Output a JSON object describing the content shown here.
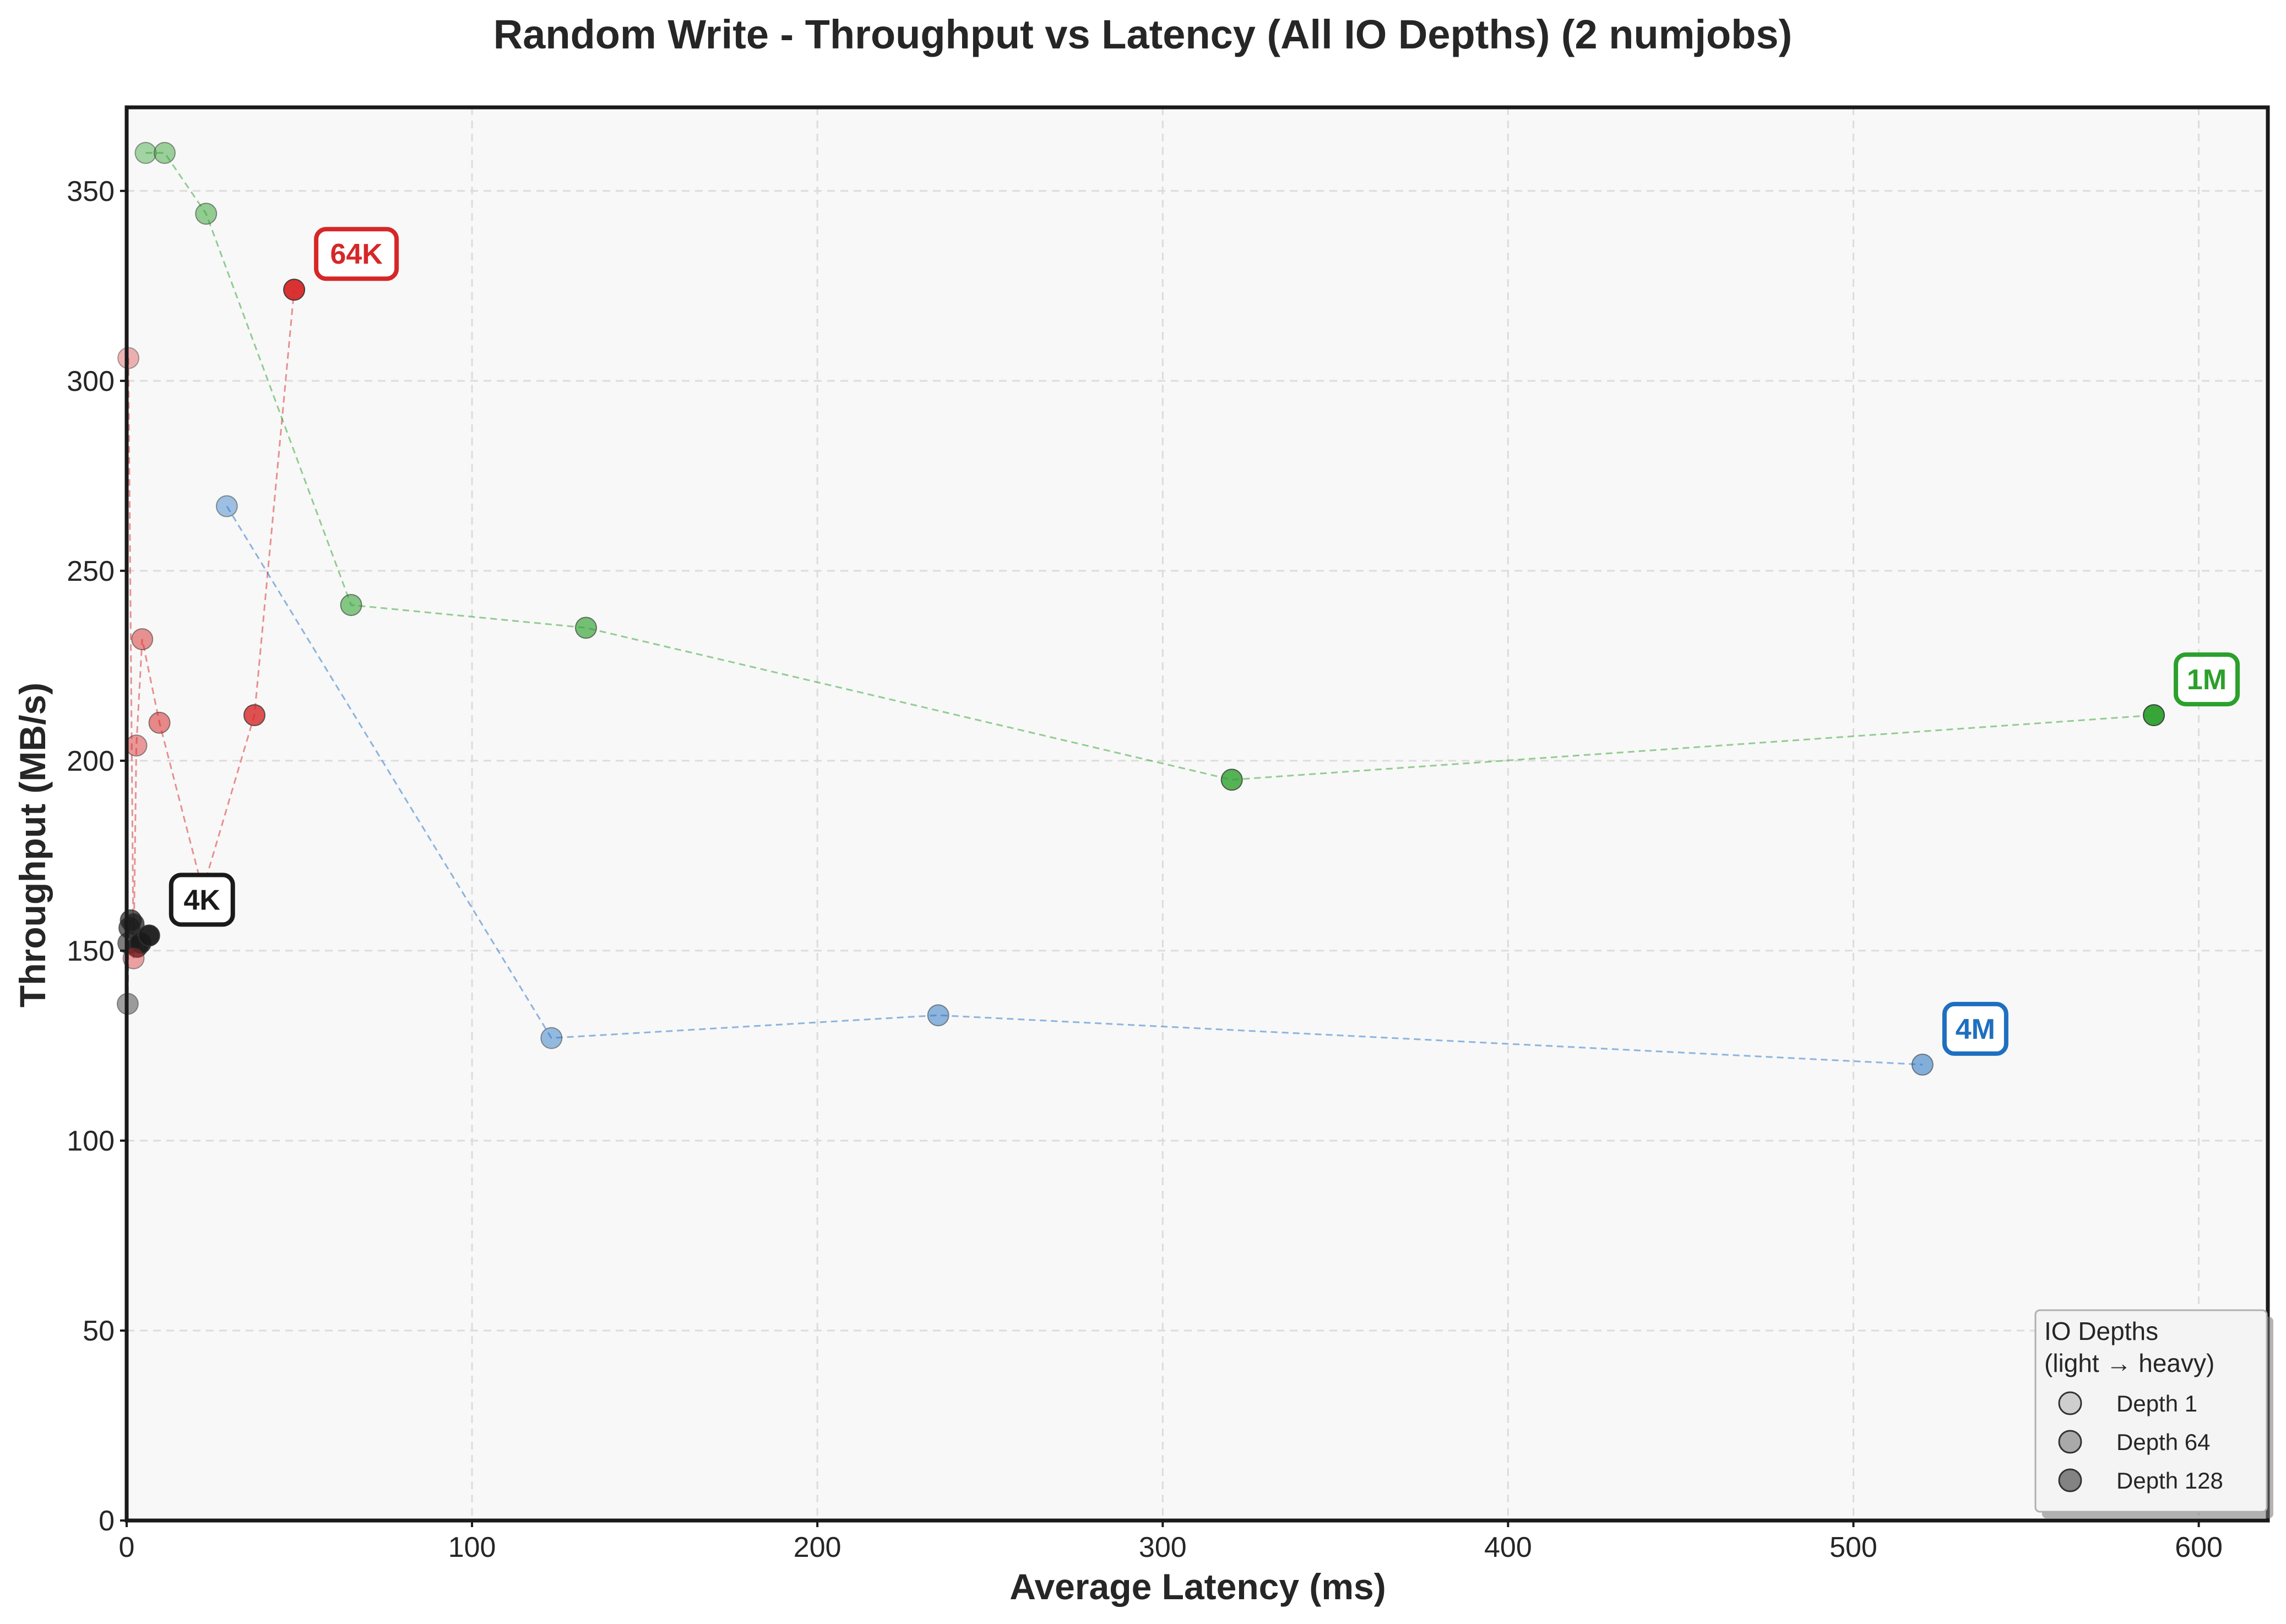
{
  "chart_data": {
    "type": "scatter",
    "title": "Random Write - Throughput vs Latency (All IO Depths) (2 numjobs)",
    "xlabel": "Average Latency (ms)",
    "ylabel": "Throughput (MB/s)",
    "xlim": [
      0,
      620
    ],
    "ylim": [
      0,
      372
    ],
    "xticks": [
      0,
      100,
      200,
      300,
      400,
      500,
      600
    ],
    "yticks": [
      0,
      50,
      100,
      150,
      200,
      250,
      300,
      350
    ],
    "grid": true,
    "series": [
      {
        "name": "4K",
        "color": "#1a1a1a",
        "points": [
          {
            "x": 0.3,
            "y": 136,
            "d": 0.3
          },
          {
            "x": 0.5,
            "y": 152,
            "d": 0.5
          },
          {
            "x": 0.8,
            "y": 156,
            "d": 0.6
          },
          {
            "x": 1.2,
            "y": 158,
            "d": 0.65
          },
          {
            "x": 2.0,
            "y": 157,
            "d": 0.7
          },
          {
            "x": 3.0,
            "y": 151,
            "d": 0.8
          },
          {
            "x": 4.0,
            "y": 152,
            "d": 0.9
          },
          {
            "x": 6.5,
            "y": 154,
            "d": 1.0
          }
        ]
      },
      {
        "name": "64K",
        "color": "#d62728",
        "points": [
          {
            "x": 0.5,
            "y": 306,
            "d": 0.2
          },
          {
            "x": 2.0,
            "y": 148,
            "d": 0.3
          },
          {
            "x": 2.8,
            "y": 204,
            "d": 0.35
          },
          {
            "x": 4.5,
            "y": 232,
            "d": 0.4
          },
          {
            "x": 9.5,
            "y": 210,
            "d": 0.45
          },
          {
            "x": 22.0,
            "y": 166,
            "d": 0.55
          },
          {
            "x": 37.0,
            "y": 212,
            "d": 0.8
          },
          {
            "x": 48.5,
            "y": 324,
            "d": 1.0
          }
        ]
      },
      {
        "name": "1M",
        "color": "#2ca02c",
        "points": [
          {
            "x": 5.5,
            "y": 360,
            "d": 0.3
          },
          {
            "x": 11.0,
            "y": 360,
            "d": 0.35
          },
          {
            "x": 23.0,
            "y": 344,
            "d": 0.4
          },
          {
            "x": 65.0,
            "y": 241,
            "d": 0.5
          },
          {
            "x": 133.0,
            "y": 235,
            "d": 0.6
          },
          {
            "x": 320.0,
            "y": 195,
            "d": 0.8
          },
          {
            "x": 587.0,
            "y": 212,
            "d": 1.0
          }
        ]
      },
      {
        "name": "4M",
        "color": "#1f6fc0",
        "points": [
          {
            "x": 29.0,
            "y": 267,
            "d": 0.3
          },
          {
            "x": 123.0,
            "y": 127,
            "d": 0.35
          },
          {
            "x": 235.0,
            "y": 133,
            "d": 0.4
          },
          {
            "x": 520.0,
            "y": 120,
            "d": 0.45
          }
        ]
      }
    ],
    "labels": [
      {
        "text": "4K",
        "series": 0,
        "x": 6.5,
        "y": 154,
        "color": "#1a1a1a"
      },
      {
        "text": "64K",
        "series": 1,
        "x": 48.5,
        "y": 324,
        "color": "#d62728"
      },
      {
        "text": "1M",
        "series": 2,
        "x": 587.0,
        "y": 212,
        "color": "#2ca02c"
      },
      {
        "text": "4M",
        "series": 3,
        "x": 520.0,
        "y": 120,
        "color": "#1f6fc0"
      }
    ],
    "legend": {
      "title_line1": "IO Depths",
      "title_line2": "(light → heavy)",
      "placement": "lower-right",
      "entries": [
        {
          "label": "Depth 1",
          "level": 0.3
        },
        {
          "label": "Depth 64",
          "level": 0.6
        },
        {
          "label": "Depth 128",
          "level": 0.9
        }
      ]
    }
  }
}
